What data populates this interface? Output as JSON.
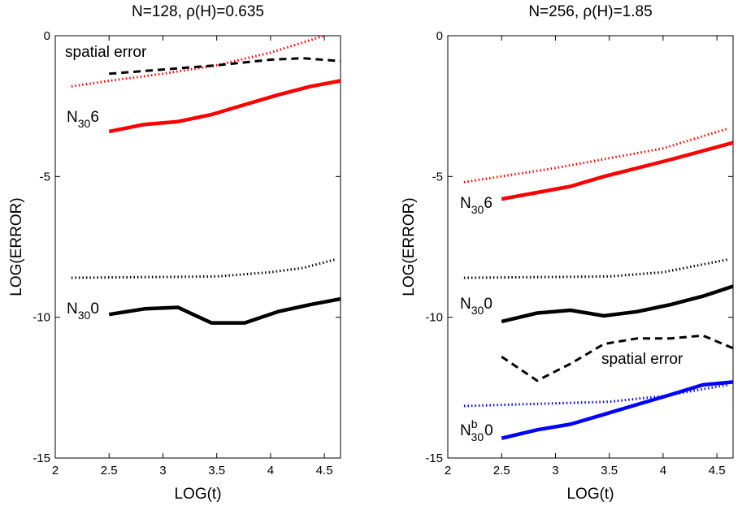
{
  "chart_data": [
    {
      "type": "line",
      "title": "N=128,   ρ(H)=0.635",
      "xlabel": "LOG(t)",
      "ylabel": "LOG(ERROR)",
      "xlim": [
        2,
        4.65
      ],
      "xticks": [
        2,
        2.5,
        3,
        3.5,
        4,
        4.5
      ],
      "ylim": [
        -15,
        0
      ],
      "yticks": [
        0,
        -5,
        -10,
        -15
      ],
      "series": [
        {
          "color": "#ff0000",
          "style": "dotted",
          "x": [
            2.15,
            2.5,
            3.0,
            3.5,
            4.0,
            4.5
          ],
          "values": [
            -1.8,
            -1.6,
            -1.35,
            -1.05,
            -0.6,
            0
          ]
        },
        {
          "color": "#000000",
          "style": "dashed",
          "x": [
            2.5,
            3.0,
            3.5,
            4.0,
            4.3,
            4.65
          ],
          "values": [
            -1.35,
            -1.2,
            -1.05,
            -0.85,
            -0.8,
            -0.9
          ]
        },
        {
          "color": "#ff0000",
          "style": "solid",
          "x": [
            2.5,
            2.83,
            3.14,
            3.45,
            3.76,
            4.07,
            4.37,
            4.65
          ],
          "values": [
            -3.4,
            -3.15,
            -3.05,
            -2.8,
            -2.45,
            -2.1,
            -1.8,
            -1.6
          ]
        },
        {
          "color": "#000000",
          "style": "dotted",
          "x": [
            2.15,
            3.5,
            4.0,
            4.3,
            4.6
          ],
          "values": [
            -8.6,
            -8.55,
            -8.4,
            -8.25,
            -7.95
          ]
        },
        {
          "color": "#000000",
          "style": "solid",
          "x": [
            2.5,
            2.83,
            3.14,
            3.45,
            3.76,
            4.07,
            4.37,
            4.65
          ],
          "values": [
            -9.9,
            -9.7,
            -9.65,
            -10.2,
            -10.2,
            -9.8,
            -9.55,
            -9.35
          ]
        }
      ],
      "annotations": [
        {
          "base": "spatial error"
        },
        {
          "base": "N",
          "sub": "30",
          "tail": "6"
        },
        {
          "base": "N",
          "sub": "30",
          "tail": "0"
        }
      ]
    },
    {
      "type": "line",
      "title": "N=256,   ρ(H)=1.85",
      "xlabel": "LOG(t)",
      "ylabel": "LOG(ERROR)",
      "xlim": [
        2,
        4.65
      ],
      "xticks": [
        2,
        2.5,
        3,
        3.5,
        4,
        4.5
      ],
      "ylim": [
        -15,
        0
      ],
      "yticks": [
        0,
        -5,
        -10,
        -15
      ],
      "series": [
        {
          "color": "#ff0000",
          "style": "dotted",
          "x": [
            2.15,
            3.0,
            4.0,
            4.6
          ],
          "values": [
            -5.2,
            -4.7,
            -4.0,
            -3.3
          ]
        },
        {
          "color": "#ff0000",
          "style": "solid",
          "x": [
            2.5,
            3.14,
            3.45,
            4.07,
            4.65
          ],
          "values": [
            -5.8,
            -5.35,
            -5.0,
            -4.4,
            -3.8
          ]
        },
        {
          "color": "#000000",
          "style": "dotted",
          "x": [
            2.15,
            3.5,
            4.0,
            4.6
          ],
          "values": [
            -8.6,
            -8.55,
            -8.4,
            -7.95
          ]
        },
        {
          "color": "#000000",
          "style": "solid",
          "x": [
            2.5,
            2.83,
            3.14,
            3.45,
            3.76,
            4.07,
            4.37,
            4.65
          ],
          "values": [
            -10.15,
            -9.85,
            -9.75,
            -9.95,
            -9.8,
            -9.55,
            -9.25,
            -8.9
          ]
        },
        {
          "color": "#000000",
          "style": "dashed",
          "x": [
            2.5,
            2.83,
            3.14,
            3.45,
            3.76,
            4.07,
            4.37,
            4.65
          ],
          "values": [
            -11.4,
            -12.25,
            -11.65,
            -10.95,
            -10.75,
            -10.75,
            -10.65,
            -11.1
          ]
        },
        {
          "color": "#0000ff",
          "style": "dotted",
          "x": [
            2.15,
            3.5,
            4.0,
            4.6
          ],
          "values": [
            -13.15,
            -13.0,
            -12.8,
            -12.4
          ]
        },
        {
          "color": "#0000ff",
          "style": "solid",
          "x": [
            2.5,
            2.83,
            3.14,
            3.45,
            3.76,
            4.07,
            4.37,
            4.65
          ],
          "values": [
            -14.3,
            -14.0,
            -13.8,
            -13.45,
            -13.1,
            -12.75,
            -12.4,
            -12.3
          ]
        }
      ],
      "annotations": [
        {
          "base": "N",
          "sub": "30",
          "tail": "6"
        },
        {
          "base": "N",
          "sub": "30",
          "tail": "0"
        },
        {
          "base": "spatial error"
        },
        {
          "base": "N",
          "sup": "b",
          "sub": "30",
          "tail": "0"
        }
      ]
    }
  ]
}
